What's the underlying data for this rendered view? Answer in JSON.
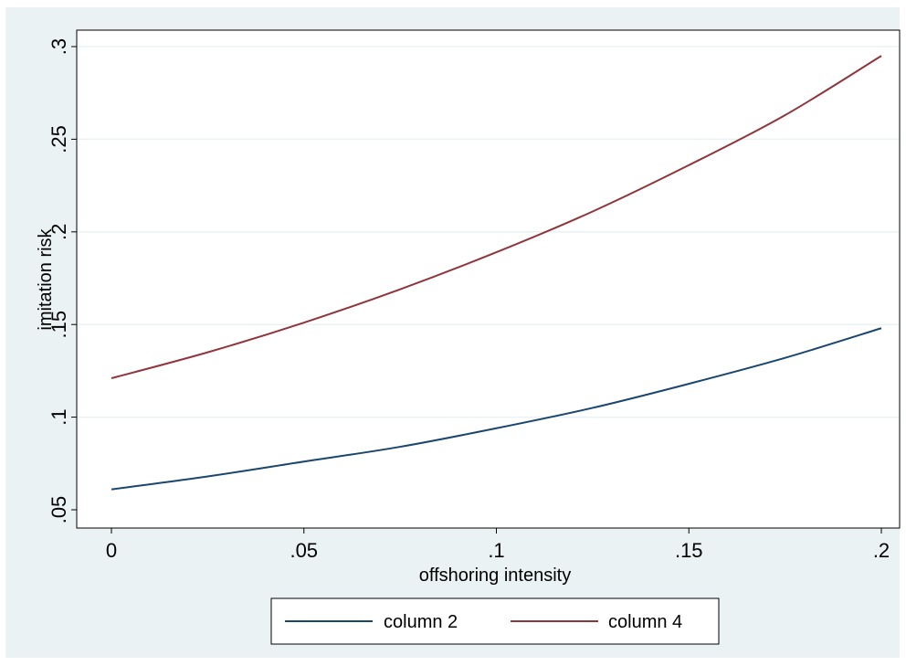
{
  "chart_data": {
    "type": "line",
    "title": "",
    "xlabel": "offshoring intensity",
    "ylabel": "imitation risk",
    "xlim": [
      0,
      0.2
    ],
    "ylim": [
      0.05,
      0.3
    ],
    "xticks": [
      0,
      0.05,
      0.1,
      0.15,
      0.2
    ],
    "xtick_labels": [
      "0",
      ".05",
      ".1",
      ".15",
      ".2"
    ],
    "yticks": [
      0.05,
      0.1,
      0.15,
      0.2,
      0.25,
      0.3
    ],
    "ytick_labels": [
      ".05",
      ".1",
      ".15",
      ".2",
      ".25",
      ".3"
    ],
    "grid": "horizontal",
    "legend_position": "bottom",
    "x": [
      0,
      0.025,
      0.05,
      0.075,
      0.1,
      0.125,
      0.15,
      0.175,
      0.2
    ],
    "series": [
      {
        "name": "column 2",
        "color": "#1a476f",
        "values": [
          0.061,
          0.068,
          0.076,
          0.084,
          0.094,
          0.105,
          0.118,
          0.132,
          0.148
        ]
      },
      {
        "name": "column 4",
        "color": "#90353b",
        "values": [
          0.121,
          0.135,
          0.151,
          0.169,
          0.189,
          0.211,
          0.236,
          0.263,
          0.295
        ]
      }
    ]
  }
}
